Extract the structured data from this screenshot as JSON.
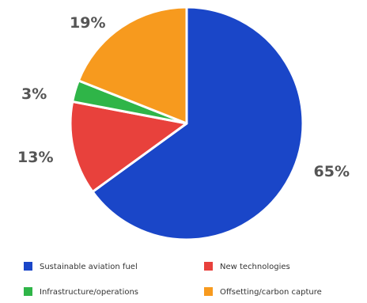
{
  "chart_data": {
    "type": "pie",
    "start_angle_deg": 0,
    "direction": "clockwise",
    "slices": [
      {
        "label": "Sustainable aviation fuel",
        "value": 65,
        "display": "65%",
        "color": "#1a46c8"
      },
      {
        "label": "New technologies",
        "value": 13,
        "display": "13%",
        "color": "#e8413c"
      },
      {
        "label": "Infrastructure/operations",
        "value": 3,
        "display": "3%",
        "color": "#2fb548"
      },
      {
        "label": "Offsetting/carbon capture",
        "value": 19,
        "display": "19%",
        "color": "#f79a1e"
      }
    ],
    "legend_position": "bottom"
  }
}
